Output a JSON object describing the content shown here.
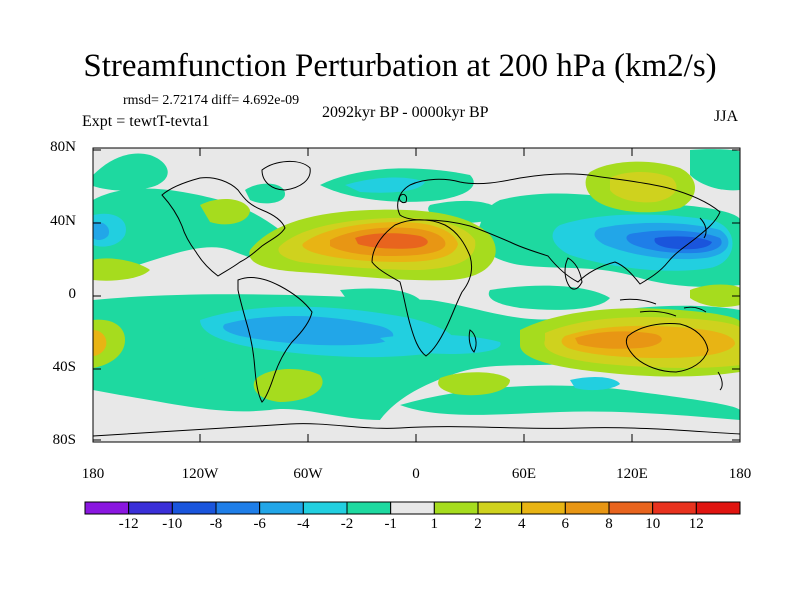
{
  "title": "Streamfunction Perturbation at 200 hPa (km2/s)",
  "stats_text": "rmsd= 2.72174 diff= 4.692e-09",
  "period_text": "2092kyr BP - 0000kyr BP",
  "expt_text": "Expt = tewtT-tevta1",
  "season": "JJA",
  "axes": {
    "lat_labels": [
      "80N",
      "40N",
      "0",
      "40S",
      "80S"
    ],
    "lon_labels": [
      "180",
      "120W",
      "60W",
      "0",
      "60E",
      "120E",
      "180"
    ]
  },
  "colorbar": {
    "labels": [
      "-12",
      "-10",
      "-8",
      "-6",
      "-4",
      "-2",
      "-1",
      "1",
      "2",
      "4",
      "6",
      "8",
      "10",
      "12"
    ],
    "colors": [
      "#8a17e0",
      "#3a2fd8",
      "#1a55dc",
      "#1f7ee8",
      "#22a6e8",
      "#22cfe0",
      "#1ed9a0",
      "#e8e8e8",
      "#a6dc1e",
      "#cfd21e",
      "#e8b414",
      "#e89614",
      "#e8641e",
      "#e8321e",
      "#e01410"
    ]
  },
  "palette": {
    "background": "#e8e8e8",
    "neg1": "#1ed9a0",
    "neg2": "#22cfe0",
    "neg4": "#22a6e8",
    "neg6": "#1f7ee8",
    "neg8": "#1a55dc",
    "pos1": "#a6dc1e",
    "pos2": "#cfd21e",
    "pos4": "#e8b414",
    "pos6": "#e89614",
    "pos8": "#e8641e"
  }
}
